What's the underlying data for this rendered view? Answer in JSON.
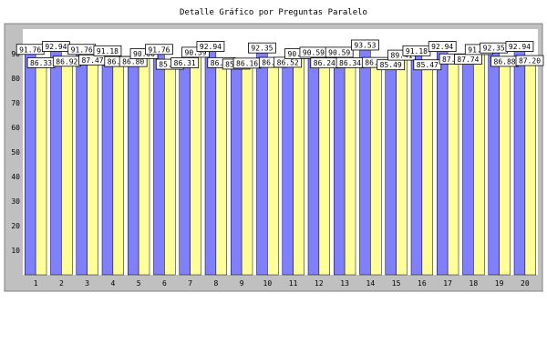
{
  "chart_data": {
    "type": "bar",
    "title": "Detalle Gráfico por Preguntas Paralelo",
    "xlabel": "",
    "ylabel": "",
    "categories": [
      "1",
      "2",
      "3",
      "4",
      "5",
      "6",
      "7",
      "8",
      "9",
      "10",
      "11",
      "12",
      "13",
      "14",
      "15",
      "16",
      "17",
      "18",
      "19",
      "20"
    ],
    "series": [
      {
        "color": "#8080ff",
        "values": [
          91.76,
          92.94,
          91.76,
          91.18,
          86.8,
          91.76,
          86.31,
          92.94,
          85.76,
          92.35,
          86.52,
          90.59,
          90.59,
          93.53,
          85.49,
          91.18,
          92.94,
          87.74,
          92.35,
          92.94
        ],
        "labels": [
          "91.76",
          "92.94",
          "91.76",
          "91.18",
          "86.80",
          "91.76",
          "86.31",
          "92.94",
          "85.76",
          "92.35",
          "86.52",
          "90.59",
          "90.59",
          "93.53",
          "85.49",
          "91.18",
          "92.94",
          "87.74",
          "92.35",
          "92.94"
        ]
      },
      {
        "color": "#ffff99",
        "values": [
          86.33,
          86.92,
          87.47,
          86.82,
          90.0,
          85.72,
          90.59,
          86.34,
          86.16,
          86.46,
          90.0,
          86.24,
          86.34,
          86.43,
          89.41,
          85.47,
          87.87,
          91.7,
          86.88,
          87.2
        ],
        "labels": [
          "86.33",
          "86.92",
          "87.47",
          "86.82",
          "90.00",
          "85.72",
          "90.59",
          "86.34",
          "86.16",
          "86.46",
          "90.00",
          "86.24",
          "86.34",
          "86.43",
          "89.41",
          "85.47",
          "87.87",
          "91.70",
          "86.88",
          "87.20"
        ]
      }
    ],
    "ylim": [
      0,
      100
    ],
    "yticks": [
      10,
      20,
      30,
      40,
      50,
      60,
      70,
      80,
      90
    ],
    "grid": false,
    "legend": "none",
    "colors": {
      "frame_bg": "#c0c0c0",
      "plot_bg": "#ffffff",
      "bar_outline": "#000000"
    }
  }
}
